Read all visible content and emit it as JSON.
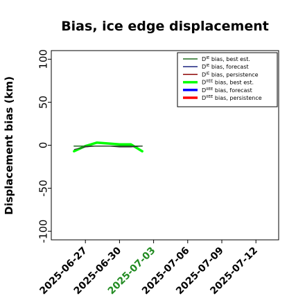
{
  "chart_data": {
    "type": "line",
    "title": "Bias, ice edge displacement",
    "ylabel": "Displacement bias (km)",
    "xlabel": "",
    "ylim": [
      -110,
      110
    ],
    "xlim": [
      "2025-06-24",
      "2025-07-14"
    ],
    "yticks": [
      {
        "value": -100,
        "label": "-100"
      },
      {
        "value": -50,
        "label": "-50"
      },
      {
        "value": 0,
        "label": "0"
      },
      {
        "value": 50,
        "label": "50"
      },
      {
        "value": 100,
        "label": "100"
      }
    ],
    "xticks": [
      {
        "value": "2025-06-27",
        "label": "2025-06-27",
        "color": "#000000"
      },
      {
        "value": "2025-06-30",
        "label": "2025-06-30",
        "color": "#000000"
      },
      {
        "value": "2025-07-03",
        "label": "2025-07-03",
        "color": "#228b22"
      },
      {
        "value": "2025-07-06",
        "label": "2025-07-06",
        "color": "#000000"
      },
      {
        "value": "2025-07-09",
        "label": "2025-07-09",
        "color": "#000000"
      },
      {
        "value": "2025-07-12",
        "label": "2025-07-12",
        "color": "#000000"
      }
    ],
    "legend_position": "top-right",
    "grid": false,
    "series": [
      {
        "name": "D^IE bias, best est.",
        "color": "#1f6b1f",
        "width": 1.5,
        "x": [
          "2025-06-26",
          "2025-06-27",
          "2025-06-28",
          "2025-06-29",
          "2025-06-30",
          "2025-07-01",
          "2025-07-02"
        ],
        "y": [
          -1,
          -1,
          -1,
          -1,
          -1,
          -1,
          -1
        ]
      },
      {
        "name": "D^IE bias, forecast",
        "color": "#1a237e",
        "width": 1.5,
        "x": [],
        "y": []
      },
      {
        "name": "D^IE bias, persistence",
        "color": "#8b0000",
        "width": 1.5,
        "x": [],
        "y": []
      },
      {
        "name": "D^IIEE bias, best est.",
        "color": "#00ff00",
        "width": 3.5,
        "x": [
          "2025-06-26",
          "2025-06-27",
          "2025-06-28",
          "2025-06-29",
          "2025-06-30",
          "2025-07-01",
          "2025-07-02"
        ],
        "y": [
          -7,
          -1,
          3,
          2,
          1,
          1,
          -7
        ]
      },
      {
        "name": "D^IIEE bias, forecast",
        "color": "#0000ff",
        "width": 3.5,
        "x": [],
        "y": []
      },
      {
        "name": "D^IIEE bias, persistence",
        "color": "#ff0000",
        "width": 3.5,
        "x": [],
        "y": []
      }
    ],
    "overlay_series": {
      "color": "#333333",
      "width": 1.2,
      "x": [
        "2025-06-26",
        "2025-06-27",
        "2025-06-28",
        "2025-06-29",
        "2025-06-30",
        "2025-07-01",
        "2025-07-02"
      ],
      "y": [
        -5,
        -2,
        -1,
        -1,
        -2,
        -2,
        -1
      ]
    },
    "legend_entries": [
      {
        "base": "D",
        "sup": "IE",
        "rest": " bias, best est."
      },
      {
        "base": "D",
        "sup": "IE",
        "rest": " bias, forecast"
      },
      {
        "base": "D",
        "sup": "IE",
        "rest": " bias, persistence"
      },
      {
        "base": "D",
        "sup": "IIEE",
        "rest": " bias, best est."
      },
      {
        "base": "D",
        "sup": "IIEE",
        "rest": " bias, forecast"
      },
      {
        "base": "D",
        "sup": "IIEE",
        "rest": " bias, persistence"
      }
    ]
  }
}
